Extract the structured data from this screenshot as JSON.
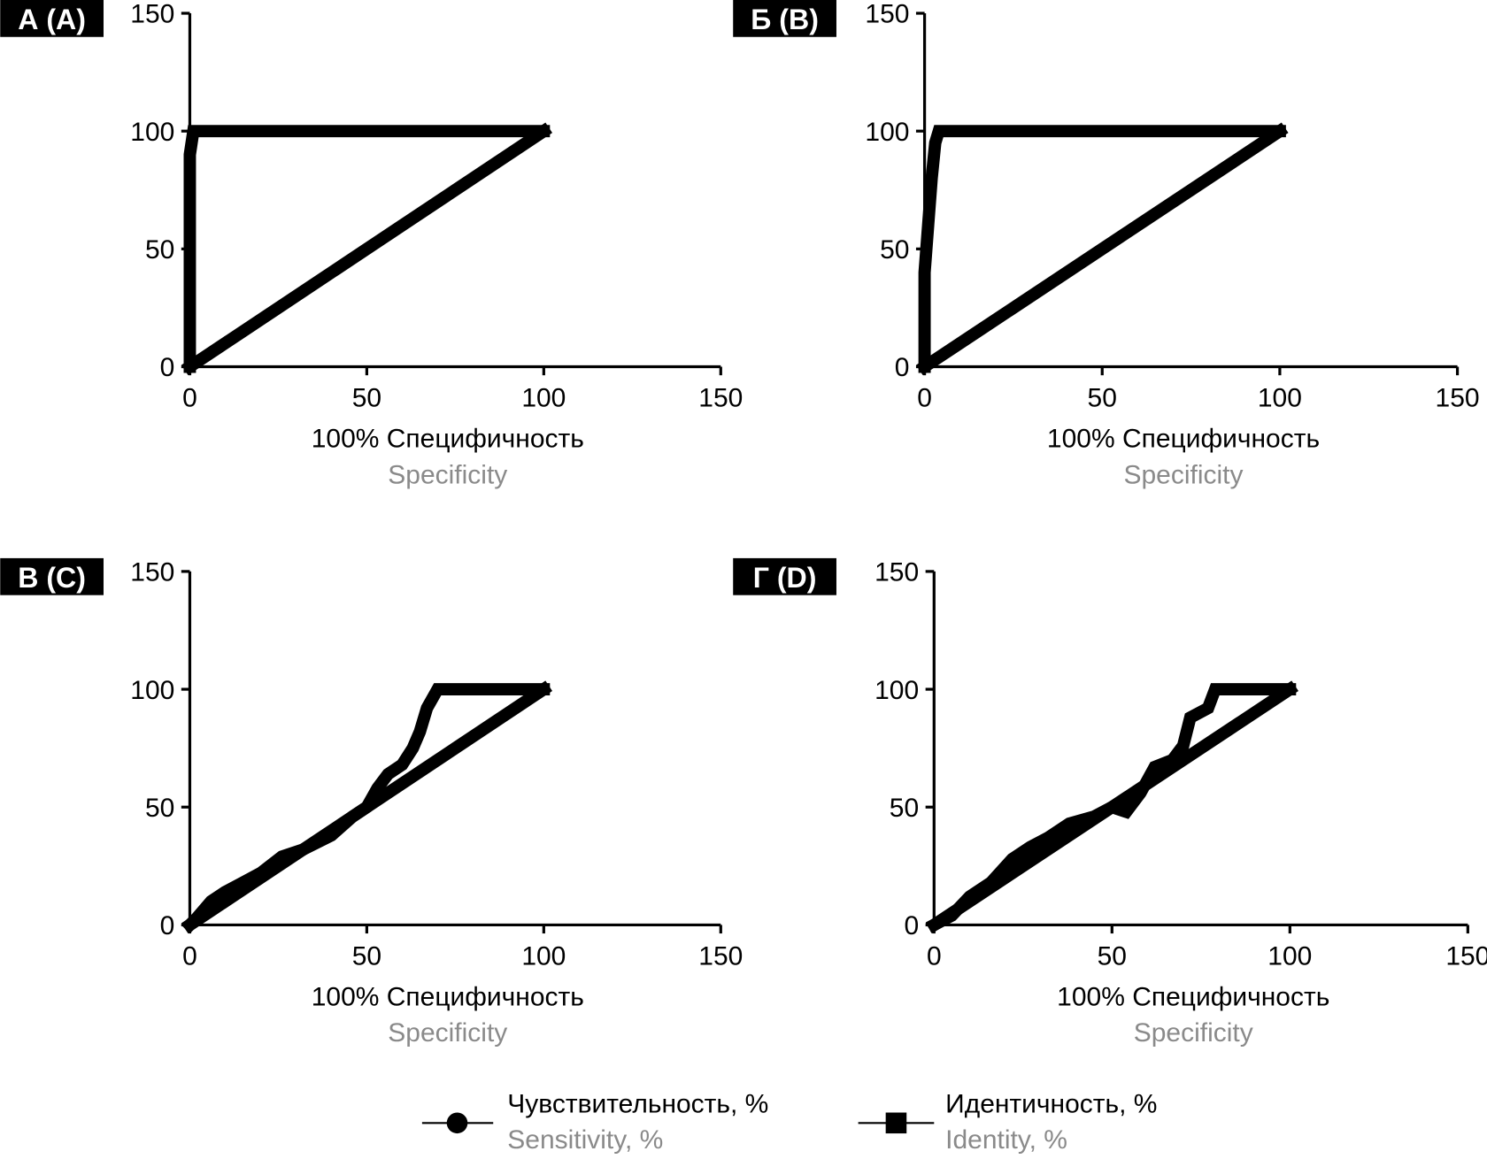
{
  "chart_data": [
    {
      "type": "line",
      "panel_label": "А (A)",
      "xlabel": "100% Специфичность",
      "xlabel_en": "Specificity",
      "xlim": [
        0,
        150
      ],
      "ylim": [
        0,
        150
      ],
      "xticks": [
        0,
        50,
        100,
        150
      ],
      "yticks": [
        0,
        50,
        100,
        150
      ],
      "series": [
        {
          "name": "Sensitivity, %",
          "x": [
            0,
            0,
            0,
            1,
            100
          ],
          "y": [
            0,
            50,
            90,
            100,
            100
          ]
        },
        {
          "name": "Identity, %",
          "x": [
            0,
            100
          ],
          "y": [
            0,
            100
          ]
        }
      ]
    },
    {
      "type": "line",
      "panel_label": "Б (B)",
      "xlabel": "100% Специфичность",
      "xlabel_en": "Specificity",
      "xlim": [
        0,
        150
      ],
      "ylim": [
        0,
        150
      ],
      "xticks": [
        0,
        50,
        100,
        150
      ],
      "yticks": [
        0,
        50,
        100,
        150
      ],
      "series": [
        {
          "name": "Sensitivity, %",
          "x": [
            0,
            0,
            1,
            2,
            3,
            4,
            100
          ],
          "y": [
            0,
            40,
            60,
            80,
            95,
            100,
            100
          ]
        },
        {
          "name": "Identity, %",
          "x": [
            0,
            100
          ],
          "y": [
            0,
            100
          ]
        }
      ]
    },
    {
      "type": "line",
      "panel_label": "В (C)",
      "xlabel": "100% Специфичность",
      "xlabel_en": "Specificity",
      "xlim": [
        0,
        150
      ],
      "ylim": [
        0,
        150
      ],
      "xticks": [
        0,
        50,
        100,
        150
      ],
      "yticks": [
        0,
        50,
        100,
        150
      ],
      "series": [
        {
          "name": "Sensitivity, %",
          "x": [
            0,
            2,
            6,
            10,
            15,
            20,
            26,
            32,
            40,
            46,
            50,
            53,
            56,
            60,
            63,
            65,
            67,
            70,
            100
          ],
          "y": [
            0,
            3,
            10,
            14,
            18,
            22,
            29,
            32,
            38,
            46,
            50,
            58,
            64,
            68,
            75,
            82,
            92,
            100,
            100
          ]
        },
        {
          "name": "Identity, %",
          "x": [
            0,
            100
          ],
          "y": [
            0,
            100
          ]
        }
      ]
    },
    {
      "type": "line",
      "panel_label": "Г (D)",
      "xlabel": "100% Специфичность",
      "xlabel_en": "Specificity",
      "xlim": [
        0,
        150
      ],
      "ylim": [
        0,
        150
      ],
      "xticks": [
        0,
        50,
        100,
        150
      ],
      "yticks": [
        0,
        50,
        100,
        150
      ],
      "series": [
        {
          "name": "Sensitivity, %",
          "x": [
            0,
            5,
            10,
            16,
            22,
            27,
            32,
            38,
            45,
            50,
            54,
            58,
            62,
            67,
            70,
            72,
            77,
            79,
            100
          ],
          "y": [
            0,
            4,
            12,
            18,
            28,
            33,
            37,
            43,
            46,
            50,
            48,
            56,
            67,
            70,
            76,
            88,
            92,
            100,
            100
          ]
        },
        {
          "name": "Identity, %",
          "x": [
            0,
            100
          ],
          "y": [
            0,
            100
          ]
        }
      ]
    }
  ],
  "legend": {
    "sensitivity_ru": "Чувствительность, %",
    "sensitivity_en": "Sensitivity, %",
    "identity_ru": "Идентичность, %",
    "identity_en": "Identity, %"
  }
}
